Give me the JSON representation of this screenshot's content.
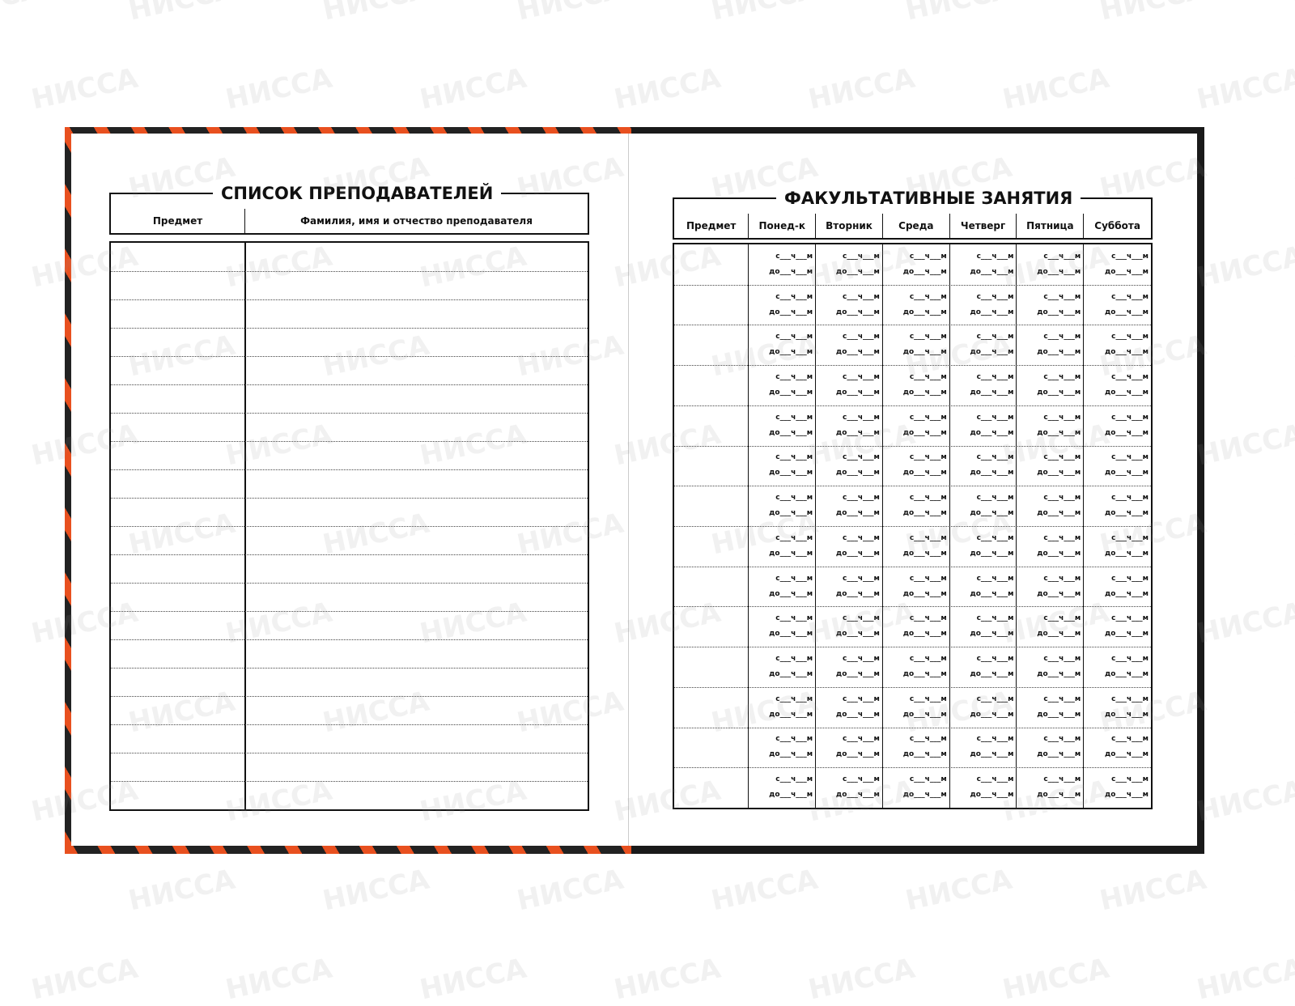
{
  "watermark": "НИССА",
  "colors": {
    "cover_orange": "#e8501f",
    "cover_black": "#1a1a1a",
    "ink": "#111111"
  },
  "left_page": {
    "title": "СПИСОК ПРЕПОДАВАТЕЛЕЙ",
    "columns": [
      "Предмет",
      "Фамилия, имя и отчество преподавателя"
    ],
    "row_count": 20
  },
  "right_page": {
    "title": "ФАКУЛЬТАТИВНЫЕ ЗАНЯТИЯ",
    "columns": [
      "Предмет",
      "Понед-к",
      "Вторник",
      "Среда",
      "Четверг",
      "Пятница",
      "Суббота"
    ],
    "row_count": 14,
    "cell_from": "с___ч___м",
    "cell_to": "до___ч___м"
  }
}
